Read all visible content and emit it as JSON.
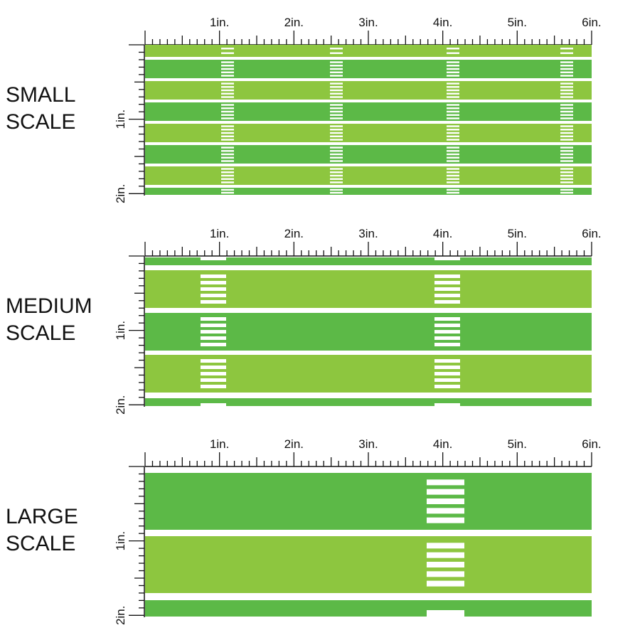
{
  "page": {
    "background": "#ffffff"
  },
  "colors": {
    "stripe_light": "#8dc63f",
    "stripe_dark": "#5cb947",
    "stripe_gap": "#ffffff",
    "ruler_ink": "#111111",
    "hash_mark": "#ffffff"
  },
  "ruler": {
    "horizontal_labels": [
      "1in.",
      "2in.",
      "3in.",
      "4in.",
      "5in.",
      "6in."
    ],
    "vertical_labels": [
      "1in.",
      "2in."
    ]
  },
  "sections": [
    {
      "id": "small",
      "label_line1": "SMALL",
      "label_line2": "SCALE",
      "pattern": "football field stripes"
    },
    {
      "id": "medium",
      "label_line1": "MEDIUM",
      "label_line2": "SCALE",
      "pattern": "football field stripes"
    },
    {
      "id": "large",
      "label_line1": "LARGE",
      "label_line2": "SCALE",
      "pattern": "football field stripes"
    }
  ]
}
